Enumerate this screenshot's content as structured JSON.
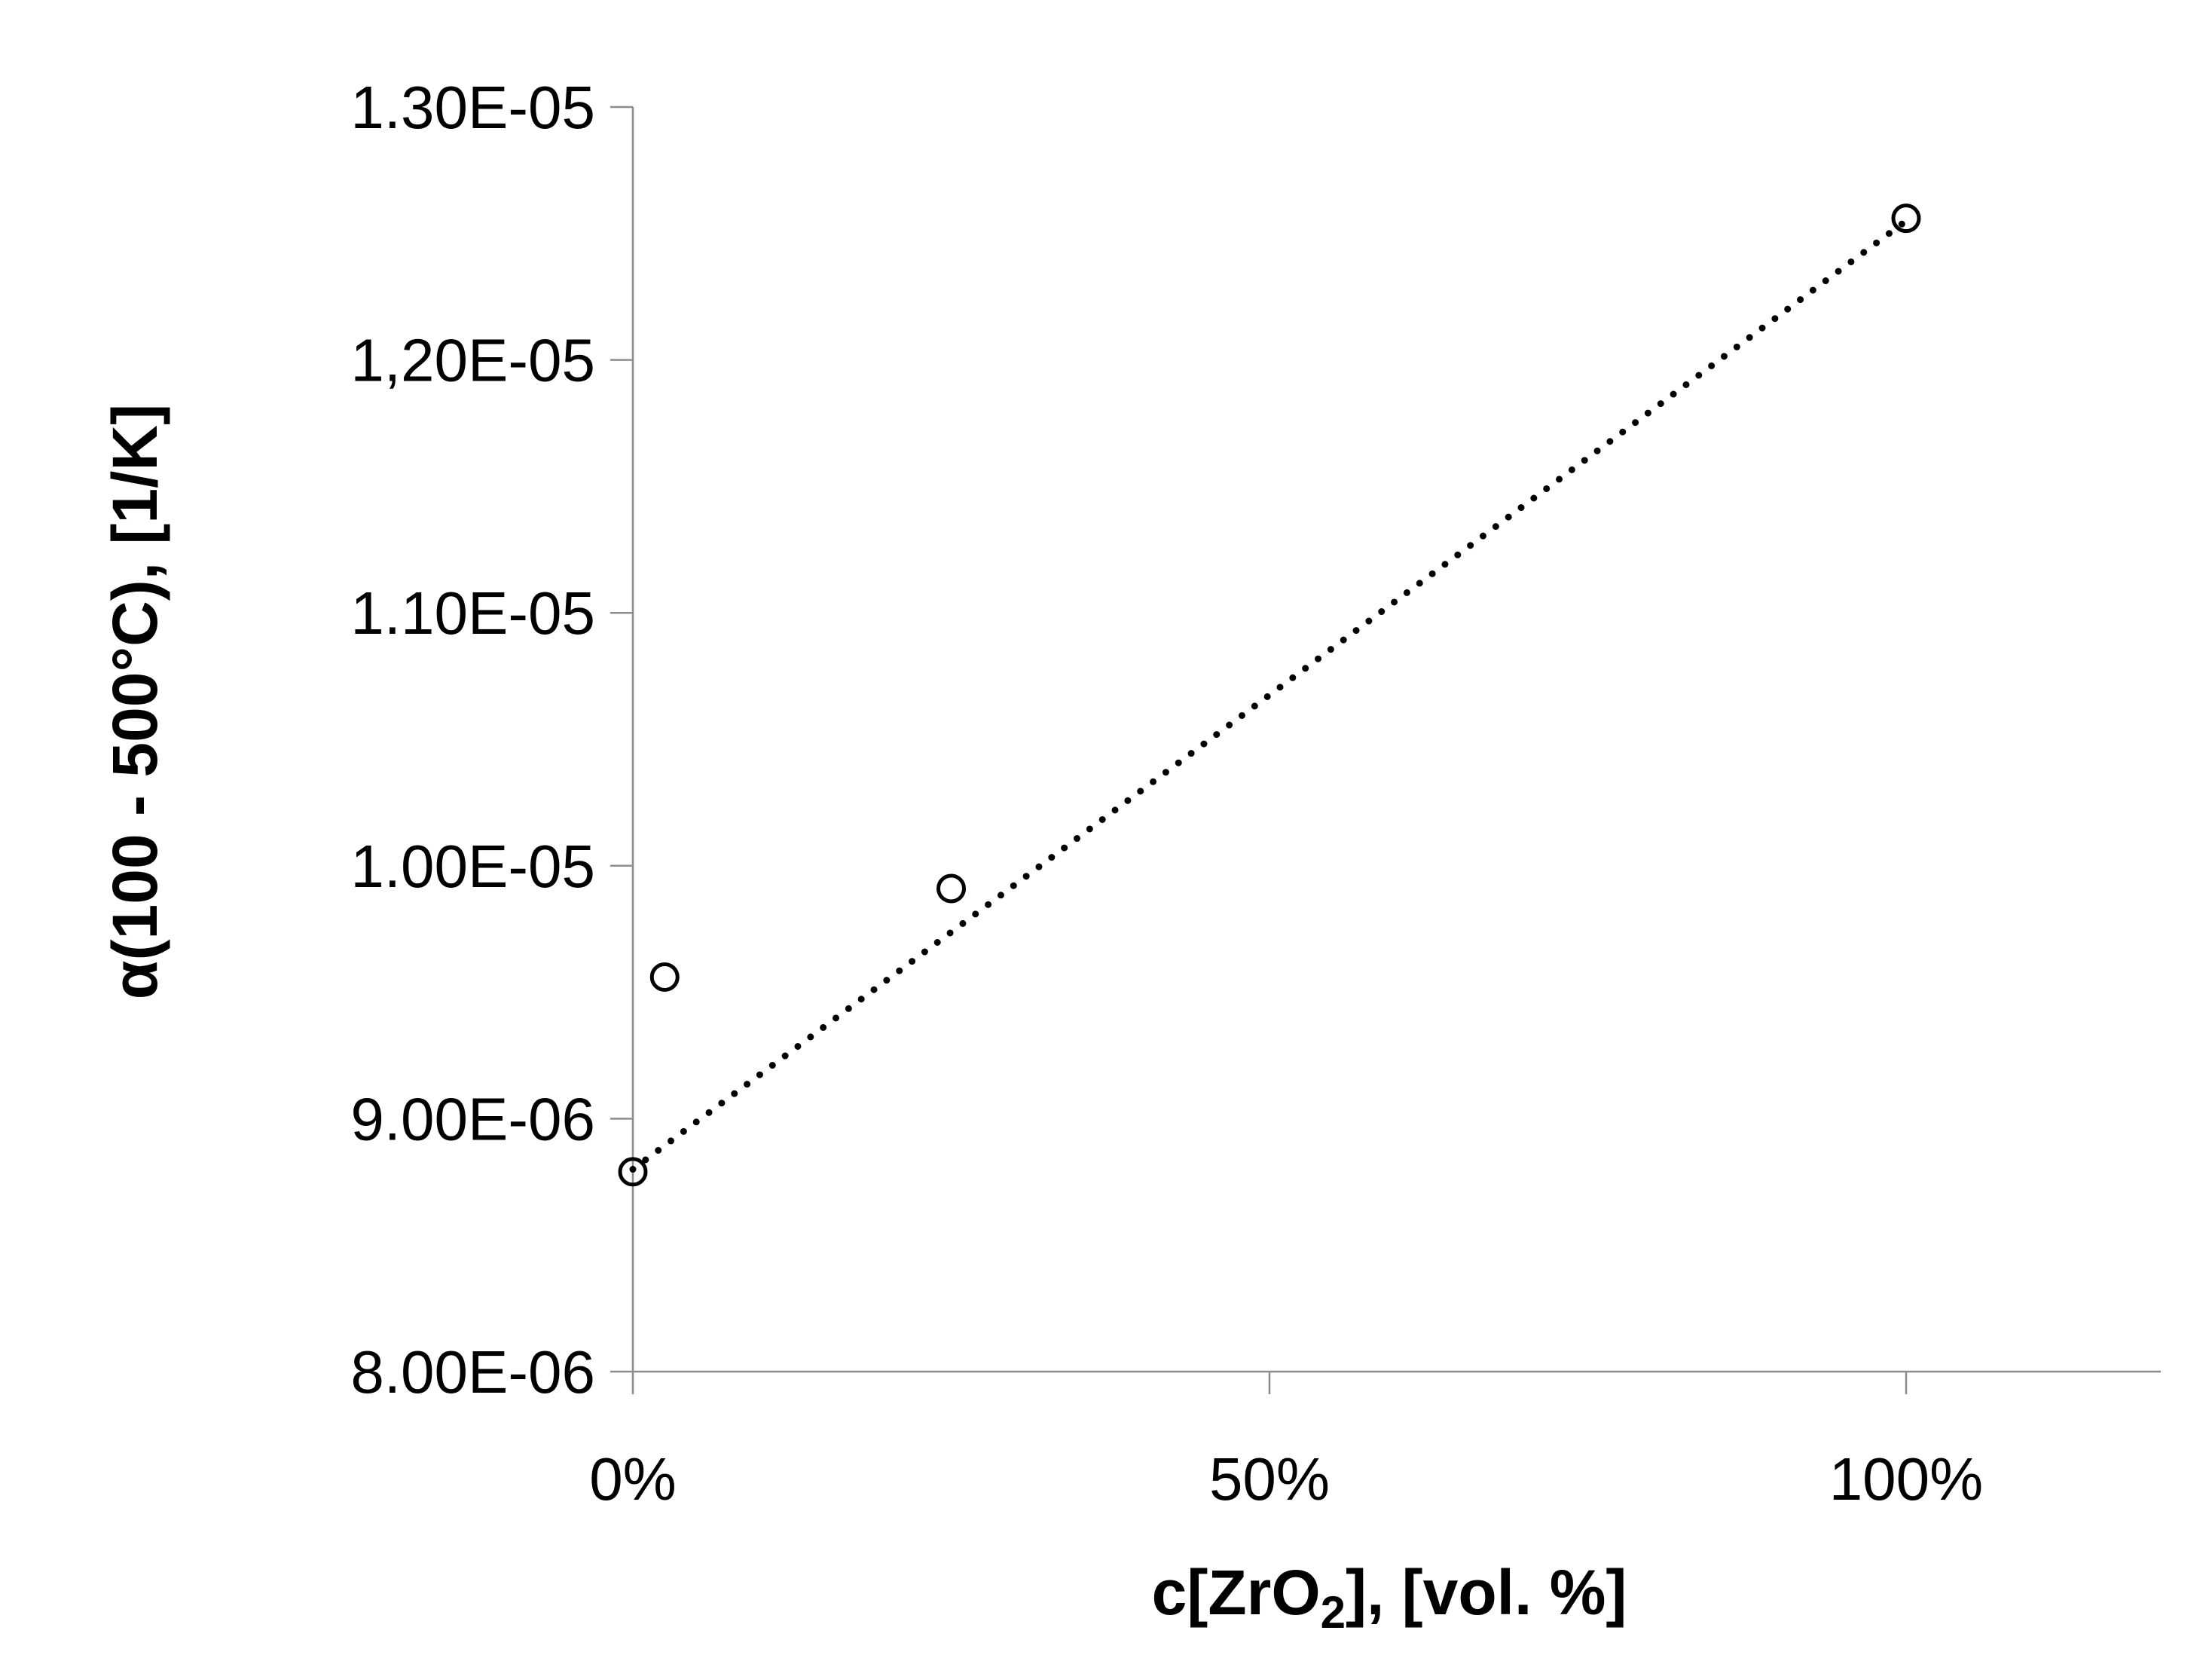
{
  "chart_data": {
    "type": "scatter",
    "title": "",
    "xlabel": {
      "main": "c[ZrO",
      "sub": "2",
      "tail": "], [vol. %]"
    },
    "ylabel": "α(100 - 500°C), [1/K]",
    "xlim": [
      0,
      1.2
    ],
    "ylim": [
      8e-06,
      1.3e-05
    ],
    "x_ticks": [
      {
        "value": 0,
        "label": "0%"
      },
      {
        "value": 0.5,
        "label": "50%"
      },
      {
        "value": 1.0,
        "label": "100%"
      }
    ],
    "y_ticks": [
      {
        "value": 8e-06,
        "label": "8.00E-06"
      },
      {
        "value": 9e-06,
        "label": "9.00E-06"
      },
      {
        "value": 1e-05,
        "label": "1.00E-05"
      },
      {
        "value": 1.1e-05,
        "label": "1.10E-05"
      },
      {
        "value": 1.2e-05,
        "label": "1,20E-05"
      },
      {
        "value": 1.3e-05,
        "label": "1.30E-05"
      }
    ],
    "grid": false,
    "legend": "none",
    "series": [
      {
        "marker": "open-circle",
        "points": [
          {
            "x": 0.0,
            "y": 8.79e-06
          },
          {
            "x": 0.025,
            "y": 9.56e-06
          },
          {
            "x": 0.25,
            "y": 9.91e-06
          },
          {
            "x": 1.0,
            "y": 1.256e-05
          }
        ]
      }
    ],
    "trendline": {
      "style": "dotted",
      "kind": "linear",
      "from": {
        "x": 0.0,
        "y": 8.8e-06
      },
      "to": {
        "x": 1.0,
        "y": 1.255e-05
      }
    },
    "colors": {
      "axis": "#8c8c8c",
      "text": "#000000",
      "marker": "#000000",
      "trend": "#000000"
    }
  }
}
